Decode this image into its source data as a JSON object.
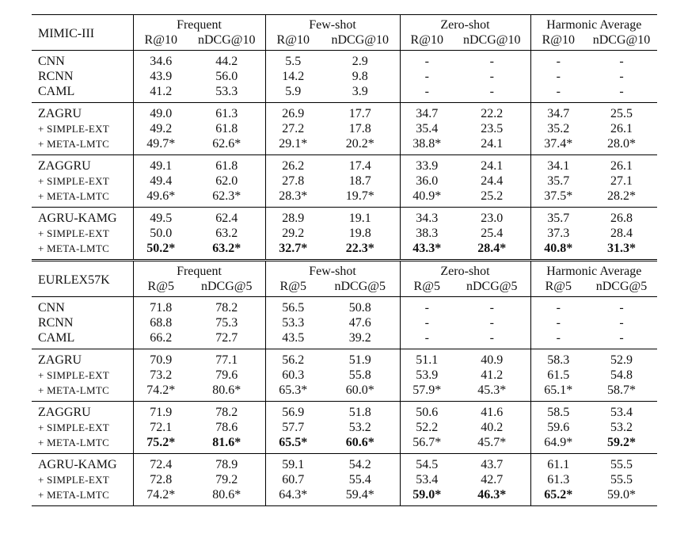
{
  "tables": [
    {
      "dataset": "MIMIC-III",
      "metric_groups": [
        "Frequent",
        "Few-shot",
        "Zero-shot",
        "Harmonic Average"
      ],
      "metrics": [
        "R@10",
        "nDCG@10"
      ],
      "blocks": [
        [
          {
            "label": "CNN",
            "cells": [
              "34.6",
              "44.2",
              "5.5",
              "2.9",
              "-",
              "-",
              "-",
              "-"
            ]
          },
          {
            "label": "RCNN",
            "cells": [
              "43.9",
              "56.0",
              "14.2",
              "9.8",
              "-",
              "-",
              "-",
              "-"
            ]
          },
          {
            "label": "CAML",
            "cells": [
              "41.2",
              "53.3",
              "5.9",
              "3.9",
              "-",
              "-",
              "-",
              "-"
            ]
          }
        ],
        [
          {
            "label": "ZAGRU",
            "cells": [
              "49.0",
              "61.3",
              "26.9",
              "17.7",
              "34.7",
              "22.2",
              "34.7",
              "25.5"
            ]
          },
          {
            "label": "+ SIMPLE-EXT",
            "cells": [
              "49.2",
              "61.8",
              "27.2",
              "17.8",
              "35.4",
              "23.5",
              "35.2",
              "26.1"
            ]
          },
          {
            "label": "+ META-LMTC",
            "cells": [
              "49.7*",
              "62.6*",
              "29.1*",
              "20.2*",
              "38.8*",
              "24.1",
              "37.4*",
              "28.0*"
            ]
          }
        ],
        [
          {
            "label": "ZAGGRU",
            "cells": [
              "49.1",
              "61.8",
              "26.2",
              "17.4",
              "33.9",
              "24.1",
              "34.1",
              "26.1"
            ]
          },
          {
            "label": "+ SIMPLE-EXT",
            "cells": [
              "49.4",
              "62.0",
              "27.8",
              "18.7",
              "36.0",
              "24.4",
              "35.7",
              "27.1"
            ]
          },
          {
            "label": "+ META-LMTC",
            "cells": [
              "49.6*",
              "62.3*",
              "28.3*",
              "19.7*",
              "40.9*",
              "25.2",
              "37.5*",
              "28.2*"
            ]
          }
        ],
        [
          {
            "label": "AGRU-KAMG",
            "cells": [
              "49.5",
              "62.4",
              "28.9",
              "19.1",
              "34.3",
              "23.0",
              "35.7",
              "26.8"
            ]
          },
          {
            "label": "+ SIMPLE-EXT",
            "cells": [
              "50.0",
              "63.2",
              "29.2",
              "19.8",
              "38.3",
              "25.4",
              "37.3",
              "28.4"
            ]
          },
          {
            "label": "+ META-LMTC",
            "cells": [
              "50.2*",
              "63.2*",
              "32.7*",
              "22.3*",
              "43.3*",
              "28.4*",
              "40.8*",
              "31.3*"
            ],
            "bold": [
              0,
              1,
              2,
              3,
              4,
              5,
              6,
              7
            ]
          }
        ]
      ]
    },
    {
      "dataset": "EURLEX57K",
      "metric_groups": [
        "Frequent",
        "Few-shot",
        "Zero-shot",
        "Harmonic Average"
      ],
      "metrics": [
        "R@5",
        "nDCG@5"
      ],
      "blocks": [
        [
          {
            "label": "CNN",
            "cells": [
              "71.8",
              "78.2",
              "56.5",
              "50.8",
              "-",
              "-",
              "-",
              "-"
            ]
          },
          {
            "label": "RCNN",
            "cells": [
              "68.8",
              "75.3",
              "53.3",
              "47.6",
              "-",
              "-",
              "-",
              "-"
            ]
          },
          {
            "label": "CAML",
            "cells": [
              "66.2",
              "72.7",
              "43.5",
              "39.2",
              "-",
              "-",
              "-",
              "-"
            ]
          }
        ],
        [
          {
            "label": "ZAGRU",
            "cells": [
              "70.9",
              "77.1",
              "56.2",
              "51.9",
              "51.1",
              "40.9",
              "58.3",
              "52.9"
            ]
          },
          {
            "label": "+ SIMPLE-EXT",
            "cells": [
              "73.2",
              "79.6",
              "60.3",
              "55.8",
              "53.9",
              "41.2",
              "61.5",
              "54.8"
            ]
          },
          {
            "label": "+ META-LMTC",
            "cells": [
              "74.2*",
              "80.6*",
              "65.3*",
              "60.0*",
              "57.9*",
              "45.3*",
              "65.1*",
              "58.7*"
            ]
          }
        ],
        [
          {
            "label": "ZAGGRU",
            "cells": [
              "71.9",
              "78.2",
              "56.9",
              "51.8",
              "50.6",
              "41.6",
              "58.5",
              "53.4"
            ]
          },
          {
            "label": "+ SIMPLE-EXT",
            "cells": [
              "72.1",
              "78.6",
              "57.7",
              "53.2",
              "52.2",
              "40.2",
              "59.6",
              "53.2"
            ]
          },
          {
            "label": "+ META-LMTC",
            "cells": [
              "75.2*",
              "81.6*",
              "65.5*",
              "60.6*",
              "56.7*",
              "45.7*",
              "64.9*",
              "59.2*"
            ],
            "bold": [
              0,
              1,
              2,
              3,
              7
            ]
          }
        ],
        [
          {
            "label": "AGRU-KAMG",
            "cells": [
              "72.4",
              "78.9",
              "59.1",
              "54.2",
              "54.5",
              "43.7",
              "61.1",
              "55.5"
            ]
          },
          {
            "label": "+ SIMPLE-EXT",
            "cells": [
              "72.8",
              "79.2",
              "60.7",
              "55.4",
              "53.4",
              "42.7",
              "61.3",
              "55.5"
            ]
          },
          {
            "label": "+ META-LMTC",
            "cells": [
              "74.2*",
              "80.6*",
              "64.3*",
              "59.4*",
              "59.0*",
              "46.3*",
              "65.2*",
              "59.0*"
            ],
            "bold": [
              4,
              5,
              6
            ]
          }
        ]
      ]
    }
  ]
}
